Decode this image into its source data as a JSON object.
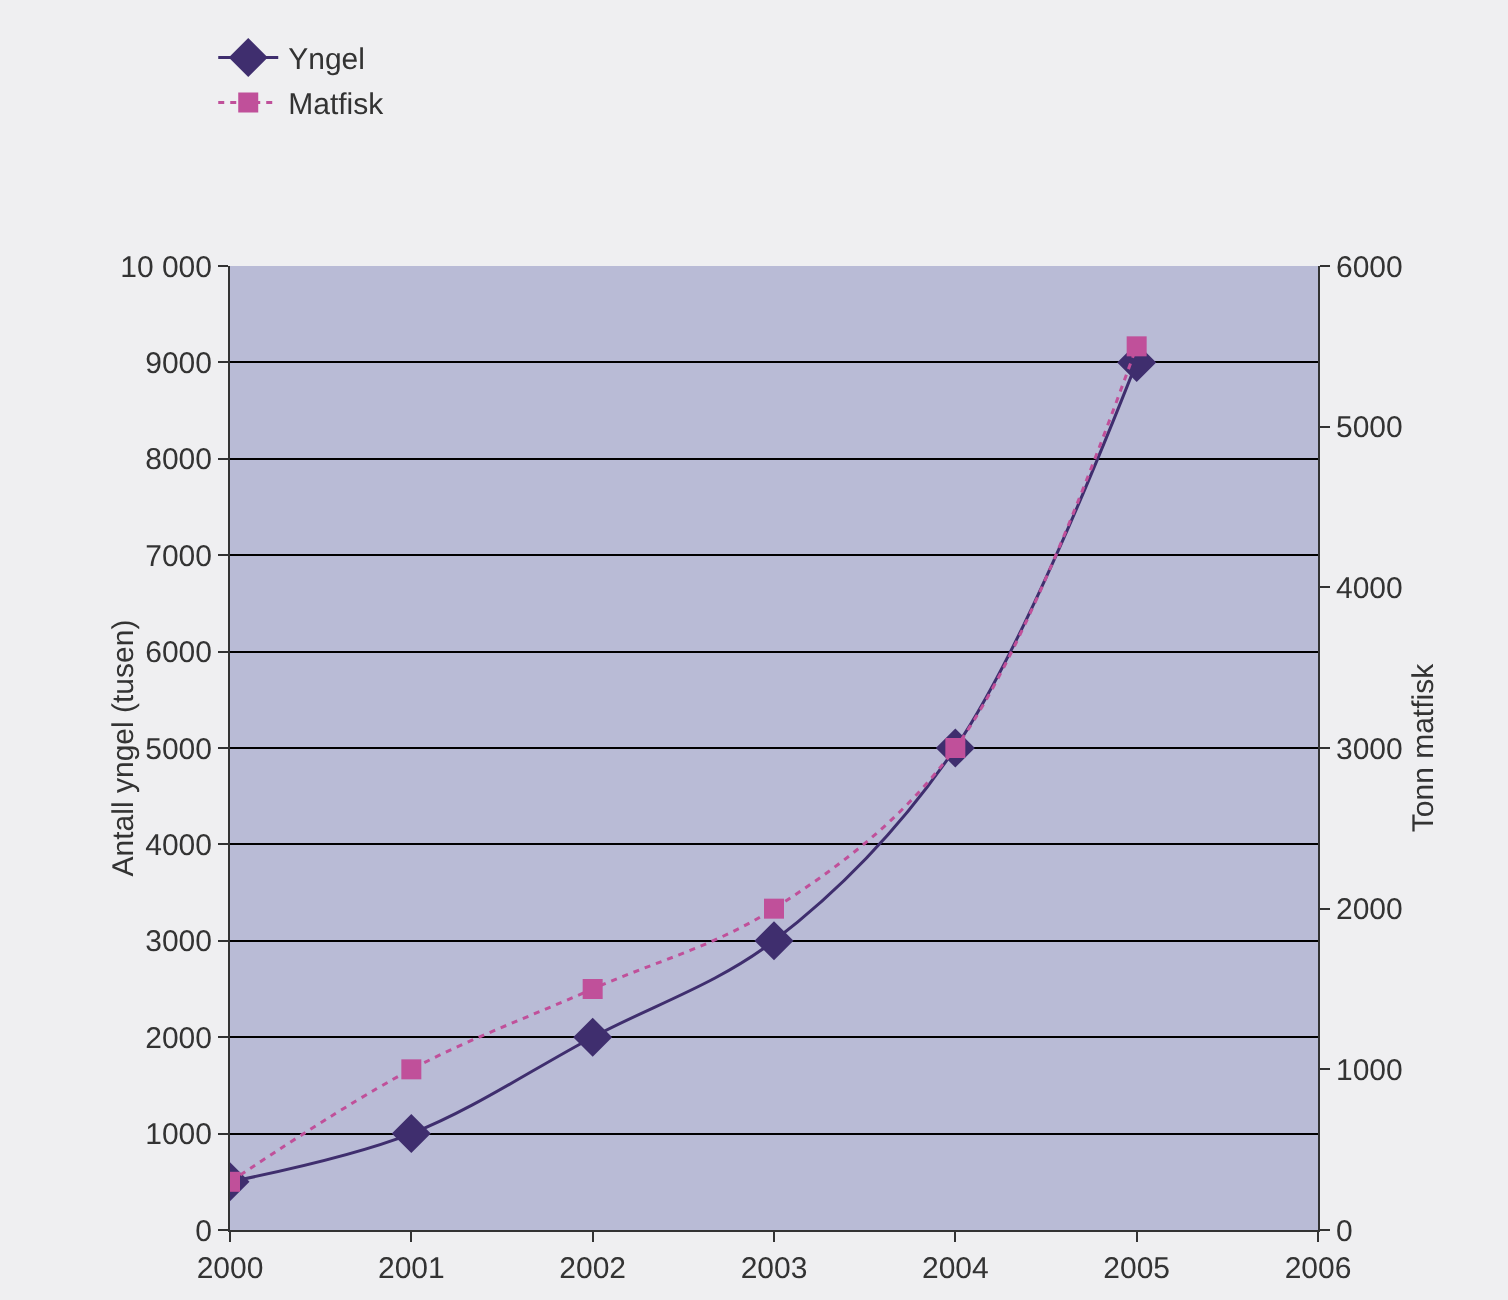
{
  "chart_data": {
    "type": "line",
    "ylabel": "Antall yngel (tusen)",
    "y2label": "Tonn matfisk",
    "x": [
      2000,
      2001,
      2002,
      2003,
      2004,
      2005
    ],
    "series": [
      {
        "name": "Yngel",
        "color": "#3f2e6e",
        "values": [
          500,
          1000,
          2000,
          3000,
          5000,
          9000
        ],
        "marker": "diamond",
        "line_style": "solid"
      },
      {
        "name": "Matfisk",
        "color": "#c0509a",
        "values": [
          300,
          1000,
          1500,
          2000,
          3000,
          5500
        ],
        "marker": "square",
        "line_style": "dotted",
        "axis": "y2"
      }
    ],
    "xlim": [
      2000,
      2006
    ],
    "xticks": [
      2000,
      2001,
      2002,
      2003,
      2004,
      2005,
      2006
    ],
    "ylim": [
      0,
      10000
    ],
    "yticks": [
      0,
      1000,
      2000,
      3000,
      4000,
      5000,
      6000,
      7000,
      8000,
      9000,
      {
        "value": 10000,
        "label": "10 000"
      }
    ],
    "y2lim": [
      0,
      6000
    ],
    "y2ticks": [
      0,
      1000,
      2000,
      3000,
      4000,
      5000,
      6000
    ],
    "grid": "y",
    "legend": "top left"
  }
}
